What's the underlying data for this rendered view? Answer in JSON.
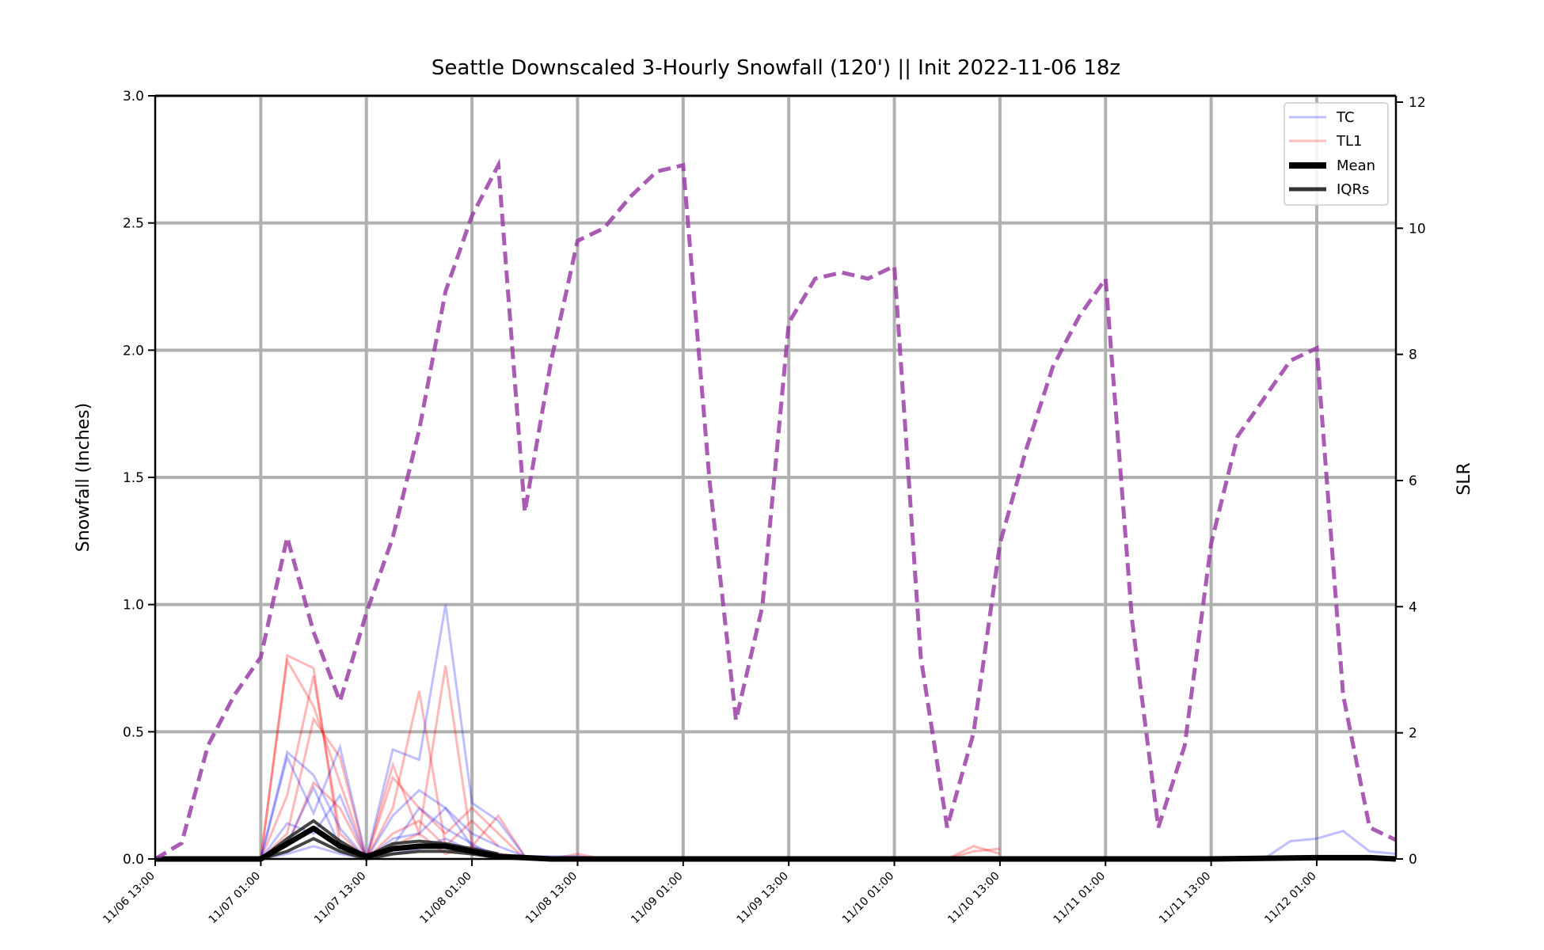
{
  "chart_data": {
    "type": "line",
    "title": "Seattle Downscaled 3-Hourly Snowfall (120') || Init 2022-11-06 18z",
    "ylabel": "Snowfall (Inches)",
    "y2label": "SLR",
    "ylim": [
      0,
      3.0
    ],
    "y2lim": [
      0,
      12.1
    ],
    "yticks": [
      "0.0",
      "0.5",
      "1.0",
      "1.5",
      "2.0",
      "2.5",
      "3.0"
    ],
    "y2ticks": [
      "0",
      "2",
      "4",
      "6",
      "8",
      "10",
      "12"
    ],
    "xticks": [
      "11/06 13:00",
      "11/07 01:00",
      "11/07 13:00",
      "11/08 01:00",
      "11/08 13:00",
      "11/09 01:00",
      "11/09 13:00",
      "11/10 01:00",
      "11/10 13:00",
      "11/11 01:00",
      "11/11 13:00",
      "11/12 01:00"
    ],
    "x_hours_from_first_tick": [
      0,
      12,
      24,
      36,
      48,
      60,
      72,
      84,
      96,
      108,
      120,
      132
    ],
    "xlim_hours": [
      0,
      141
    ],
    "grid": true,
    "legend": {
      "placement": "top-right",
      "entries": [
        {
          "label": "TC",
          "color": "#4444ff"
        },
        {
          "label": "TL1",
          "color": "#ff4444"
        },
        {
          "label": "Mean",
          "color": "#000000"
        },
        {
          "label": "IQRs",
          "color": "#333333"
        }
      ]
    },
    "colors": {
      "tc": "#0000ff",
      "tl1": "#ff0000",
      "mean": "#000000",
      "slr": "#9b3fa8",
      "grid": "#b0b0b0"
    },
    "slr_series": {
      "name": "SLR",
      "axis": "right",
      "x": [
        0,
        3,
        6,
        9,
        12,
        15,
        18,
        21,
        24,
        27,
        30,
        33,
        36,
        39,
        42,
        45,
        48,
        51,
        54,
        57,
        60,
        63,
        66,
        69,
        72,
        75,
        78,
        81,
        84,
        87,
        90,
        93,
        96,
        99,
        102,
        105,
        108,
        111,
        114,
        117,
        120,
        123,
        126,
        129,
        132,
        135,
        138,
        141
      ],
      "values": [
        0.0,
        0.25,
        1.8,
        2.6,
        3.2,
        5.1,
        3.6,
        2.5,
        3.9,
        5.1,
        6.8,
        9.0,
        10.2,
        11.0,
        5.5,
        7.9,
        9.8,
        10.0,
        10.5,
        10.9,
        11.0,
        6.0,
        2.2,
        4.0,
        8.5,
        9.2,
        9.3,
        9.2,
        9.4,
        3.2,
        0.5,
        2.0,
        5.0,
        6.5,
        7.8,
        8.6,
        9.2,
        3.8,
        0.5,
        1.8,
        5.0,
        6.7,
        7.3,
        7.9,
        8.1,
        2.6,
        0.5,
        0.3
      ]
    },
    "mean_series": {
      "name": "Mean",
      "x": [
        0,
        3,
        6,
        9,
        12,
        15,
        18,
        21,
        24,
        27,
        30,
        33,
        36,
        39,
        42,
        45,
        48,
        54,
        60,
        72,
        84,
        96,
        108,
        120,
        132,
        138,
        141
      ],
      "values": [
        0.0,
        0.0,
        0.0,
        0.0,
        0.0,
        0.06,
        0.12,
        0.05,
        0.01,
        0.04,
        0.05,
        0.05,
        0.03,
        0.01,
        0.005,
        0.0,
        0.0,
        0.0,
        0.0,
        0.0,
        0.0,
        0.0,
        0.0,
        0.0,
        0.005,
        0.005,
        0.0
      ]
    },
    "iqr_series": [
      {
        "x": [
          12,
          15,
          18,
          21,
          24,
          27,
          30,
          33,
          36,
          39
        ],
        "values": [
          0.0,
          0.08,
          0.15,
          0.07,
          0.01,
          0.06,
          0.07,
          0.06,
          0.04,
          0.02
        ]
      },
      {
        "x": [
          12,
          15,
          18,
          21,
          24,
          27,
          30,
          33,
          36,
          39
        ],
        "values": [
          0.0,
          0.03,
          0.08,
          0.03,
          0.0,
          0.02,
          0.03,
          0.03,
          0.02,
          0.005
        ]
      }
    ],
    "tc_members": [
      {
        "x": [
          12,
          15,
          18,
          21,
          24,
          27,
          30,
          33,
          36,
          39,
          42,
          45,
          48,
          51
        ],
        "values": [
          0.0,
          0.42,
          0.33,
          0.12,
          0.0,
          0.43,
          0.39,
          1.0,
          0.22,
          0.15,
          0.01,
          0.01,
          0.01,
          0.0
        ]
      },
      {
        "x": [
          12,
          15,
          18,
          21,
          24,
          27,
          30,
          33,
          36,
          39,
          42
        ],
        "values": [
          0.0,
          0.4,
          0.18,
          0.44,
          0.0,
          0.17,
          0.27,
          0.2,
          0.1,
          0.05,
          0.01
        ]
      },
      {
        "x": [
          12,
          15,
          18,
          21,
          24,
          27,
          30,
          33,
          36,
          39,
          42
        ],
        "values": [
          0.0,
          0.14,
          0.1,
          0.25,
          0.0,
          0.08,
          0.1,
          0.2,
          0.05,
          0.02,
          0.0
        ]
      },
      {
        "x": [
          12,
          15,
          18,
          21,
          24,
          27,
          30,
          33,
          36,
          39
        ],
        "values": [
          0.0,
          0.06,
          0.28,
          0.05,
          0.0,
          0.05,
          0.2,
          0.12,
          0.06,
          0.0
        ]
      },
      {
        "x": [
          12,
          15,
          18,
          21,
          24,
          27,
          30,
          33,
          36,
          39
        ],
        "values": [
          0.0,
          0.02,
          0.05,
          0.02,
          0.0,
          0.02,
          0.04,
          0.08,
          0.03,
          0.0
        ]
      },
      {
        "x": [
          120,
          123,
          126,
          129,
          132,
          135,
          138,
          141
        ],
        "values": [
          0.0,
          0.0,
          0.0,
          0.07,
          0.08,
          0.11,
          0.03,
          0.02
        ]
      }
    ],
    "tl1_members": [
      {
        "x": [
          12,
          15,
          18,
          21,
          24,
          27,
          30,
          33,
          36,
          39,
          42,
          45,
          48,
          51
        ],
        "values": [
          0.0,
          0.8,
          0.75,
          0.05,
          0.0,
          0.2,
          0.66,
          0.05,
          0.03,
          0.02,
          0.01,
          0.0,
          0.02,
          0.0
        ]
      },
      {
        "x": [
          12,
          15,
          18,
          21,
          24,
          27,
          30,
          33,
          36,
          39,
          42
        ],
        "values": [
          0.0,
          0.78,
          0.6,
          0.3,
          0.0,
          0.37,
          0.1,
          0.76,
          0.05,
          0.17,
          0.01
        ]
      },
      {
        "x": [
          12,
          15,
          18,
          21,
          24,
          27,
          30,
          33,
          36,
          39,
          42
        ],
        "values": [
          0.0,
          0.25,
          0.72,
          0.1,
          0.0,
          0.32,
          0.2,
          0.1,
          0.2,
          0.1,
          0.0
        ]
      },
      {
        "x": [
          12,
          15,
          18,
          21,
          24,
          27,
          30,
          33,
          36,
          39
        ],
        "values": [
          0.0,
          0.1,
          0.55,
          0.4,
          0.0,
          0.1,
          0.15,
          0.05,
          0.15,
          0.05
        ]
      },
      {
        "x": [
          12,
          15,
          18,
          21,
          24,
          27,
          30,
          33,
          36,
          39
        ],
        "values": [
          0.0,
          0.05,
          0.3,
          0.2,
          0.0,
          0.05,
          0.1,
          0.02,
          0.05,
          0.0
        ]
      },
      {
        "x": [
          90,
          93,
          96
        ],
        "values": [
          0.0,
          0.05,
          0.02
        ]
      },
      {
        "x": [
          90,
          93,
          96
        ],
        "values": [
          0.0,
          0.03,
          0.04
        ]
      }
    ]
  }
}
